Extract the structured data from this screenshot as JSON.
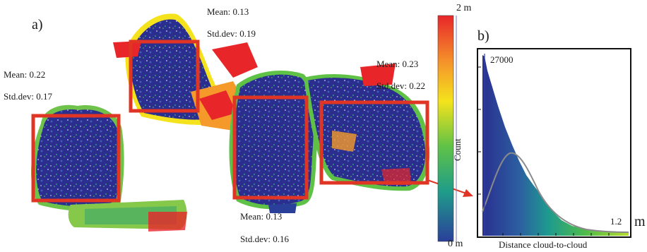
{
  "panels": {
    "a": "a)",
    "b": "b)"
  },
  "regions": [
    {
      "mean": "Mean: 0.22",
      "std": "Std.dev: 0.17"
    },
    {
      "mean": "Mean: 0.13",
      "std": "Std.dev: 0.19"
    },
    {
      "mean": "Mean: 0.13",
      "std": "Std.dev: 0.16"
    },
    {
      "mean": "Mean: 0.23",
      "std": "Std.dev: 0.22"
    }
  ],
  "colorbar": {
    "max_label": "2 m",
    "min_label": "0 m",
    "colors": [
      "#e8262a",
      "#f59a2a",
      "#f4e31c",
      "#5fc247",
      "#1f9c8a",
      "#2a3f9a"
    ]
  },
  "histogram": {
    "peak_label": "27000",
    "x_end_label": "1.2",
    "unit_label": "m",
    "ylabel": "Count",
    "xlabel": "Distance cloud-to-cloud"
  },
  "colors": {
    "box": "#e03424",
    "arrow": "#e03424",
    "cloud_base": "#2a2d8c"
  }
}
